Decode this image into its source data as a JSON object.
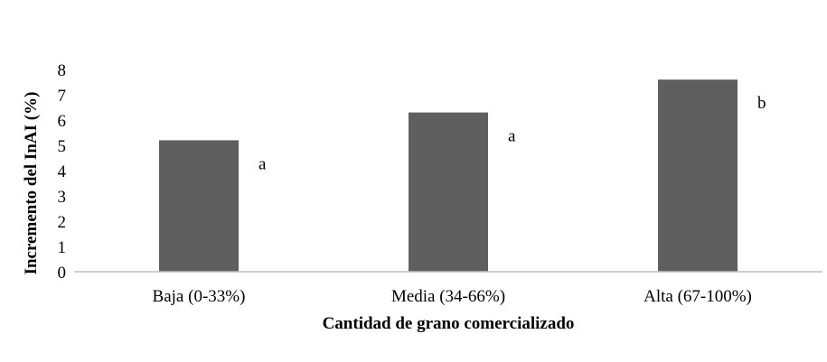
{
  "chart_data": {
    "type": "bar",
    "categories": [
      "Baja (0-33%)",
      "Media (34-66%)",
      "Alta (67-100%)"
    ],
    "values": [
      5.2,
      6.3,
      7.6
    ],
    "annotations": [
      "a",
      "a",
      "b"
    ],
    "xlabel": "Cantidad de grano comercializado",
    "ylabel": "Incremento del InAI (%)",
    "ylim": [
      0,
      8
    ],
    "yticks": [
      "0",
      "1",
      "2",
      "3",
      "4",
      "5",
      "6",
      "7",
      "8"
    ],
    "grid": false,
    "legend": "none",
    "bar_color": "#5f5f5f",
    "axis_color": "#bfbfbf"
  }
}
